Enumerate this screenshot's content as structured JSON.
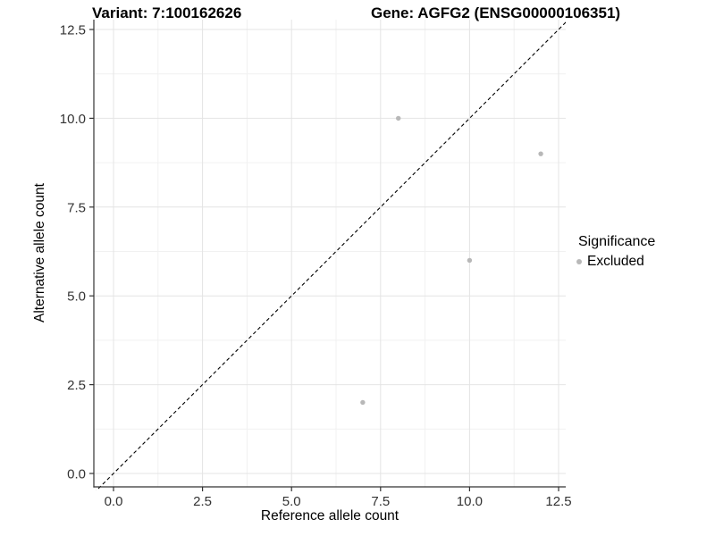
{
  "chart_data": {
    "type": "scatter",
    "title_left": "Variant: 7:100162626",
    "title_right": "Gene: AGFG2 (ENSG00000106351)",
    "xlabel": "Reference allele count",
    "ylabel": "Alternative allele count",
    "xlim": [
      -0.55,
      12.7
    ],
    "ylim": [
      -0.4,
      12.8
    ],
    "xticks": [
      0,
      2.5,
      5,
      7.5,
      10,
      12.5
    ],
    "xtick_labels": [
      "0.0",
      "2.5",
      "5.0",
      "7.5",
      "10.0",
      "12.5"
    ],
    "yticks": [
      0,
      2.5,
      5,
      7.5,
      10,
      12.5
    ],
    "ytick_labels": [
      "0.0",
      "2.5",
      "5.0",
      "7.5",
      "10.0",
      "12.5"
    ],
    "xticks_minor": [
      1.25,
      3.75,
      6.25,
      8.75,
      11.25
    ],
    "yticks_minor": [
      1.25,
      3.75,
      6.25,
      8.75,
      11.25
    ],
    "grid": "major-and-minor",
    "reference_line": {
      "type": "identity",
      "slope": 1,
      "intercept": 0,
      "style": "dashed",
      "color": "#000000"
    },
    "series": [
      {
        "name": "Excluded",
        "color": "#b8b8b8",
        "points": [
          {
            "x": 8,
            "y": 10
          },
          {
            "x": 12,
            "y": 9
          },
          {
            "x": 10,
            "y": 6
          },
          {
            "x": 7,
            "y": 2
          }
        ]
      }
    ],
    "legend": {
      "position": "right",
      "title": "Significance",
      "items": [
        {
          "label": "Excluded",
          "color": "#b8b8b8"
        }
      ]
    },
    "colors": {
      "background": "#ffffff",
      "grid_major": "#e4e4e4",
      "grid_minor": "#f1f1f1",
      "axis_line": "#333333",
      "tick_text": "#333333",
      "point": "#b8b8b8"
    }
  }
}
